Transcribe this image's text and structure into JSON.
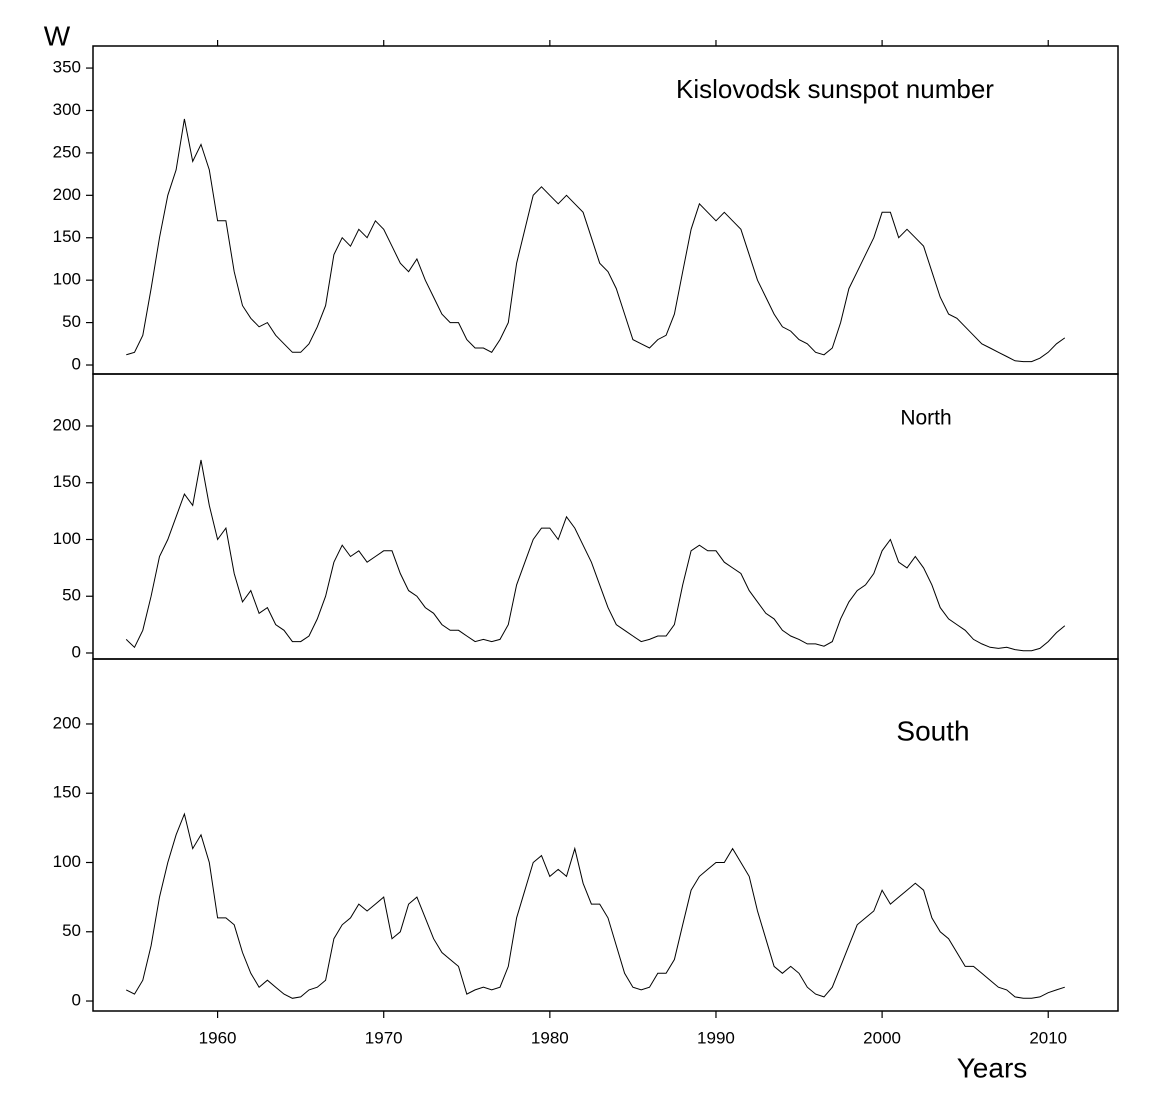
{
  "chart_data": [
    {
      "type": "line",
      "title": "Kislovodsk sunspot number",
      "ylabel": "W",
      "color": "#000000",
      "xlim": [
        1952.5,
        2014.2
      ],
      "ylim": [
        -10.6,
        376
      ],
      "yticks": [
        0,
        50,
        100,
        150,
        200,
        250,
        300,
        350
      ],
      "x": [
        1954.5,
        1955,
        1955.5,
        1956,
        1956.5,
        1957,
        1957.5,
        1958,
        1958.5,
        1959,
        1959.5,
        1960,
        1960.5,
        1961,
        1961.5,
        1962,
        1962.5,
        1963,
        1963.5,
        1964,
        1964.5,
        1965,
        1965.5,
        1966,
        1966.5,
        1967,
        1967.5,
        1968,
        1968.5,
        1969,
        1969.5,
        1970,
        1970.5,
        1971,
        1971.5,
        1972,
        1972.5,
        1973,
        1973.5,
        1974,
        1974.5,
        1975,
        1975.5,
        1976,
        1976.5,
        1977,
        1977.5,
        1978,
        1978.5,
        1979,
        1979.5,
        1980,
        1980.5,
        1981,
        1981.5,
        1982,
        1982.5,
        1983,
        1983.5,
        1984,
        1984.5,
        1985,
        1985.5,
        1986,
        1986.5,
        1987,
        1987.5,
        1988,
        1988.5,
        1989,
        1989.5,
        1990,
        1990.5,
        1991,
        1991.5,
        1992,
        1992.5,
        1993,
        1993.5,
        1994,
        1994.5,
        1995,
        1995.5,
        1996,
        1996.5,
        1997,
        1997.5,
        1998,
        1998.5,
        1999,
        1999.5,
        2000,
        2000.5,
        2001,
        2001.5,
        2002,
        2002.5,
        2003,
        2003.5,
        2004,
        2004.5,
        2005,
        2005.5,
        2006,
        2006.5,
        2007,
        2007.5,
        2008,
        2008.5,
        2009,
        2009.5,
        2010,
        2010.5,
        2011
      ],
      "values": [
        12,
        15,
        35,
        90,
        150,
        200,
        230,
        290,
        240,
        260,
        230,
        170,
        170,
        110,
        70,
        55,
        45,
        50,
        35,
        25,
        15,
        15,
        25,
        45,
        70,
        130,
        150,
        140,
        160,
        150,
        170,
        160,
        140,
        120,
        110,
        125,
        100,
        80,
        60,
        50,
        50,
        30,
        20,
        20,
        15,
        30,
        50,
        120,
        160,
        200,
        210,
        200,
        190,
        200,
        190,
        180,
        150,
        120,
        110,
        90,
        60,
        30,
        25,
        20,
        30,
        35,
        60,
        110,
        160,
        190,
        180,
        170,
        180,
        170,
        160,
        130,
        100,
        80,
        60,
        45,
        40,
        30,
        25,
        15,
        12,
        20,
        50,
        90,
        110,
        130,
        150,
        180,
        180,
        150,
        160,
        150,
        140,
        110,
        80,
        60,
        55,
        45,
        35,
        25,
        20,
        15,
        10,
        5,
        4,
        4,
        8,
        15,
        25,
        32
      ]
    },
    {
      "type": "line",
      "title": "North",
      "color": "#000000",
      "xlim": [
        1952.5,
        2014.2
      ],
      "ylim": [
        -5.3,
        245.8
      ],
      "yticks": [
        0,
        50,
        100,
        150,
        200
      ],
      "x": [
        1954.5,
        1955,
        1955.5,
        1956,
        1956.5,
        1957,
        1957.5,
        1958,
        1958.5,
        1959,
        1959.5,
        1960,
        1960.5,
        1961,
        1961.5,
        1962,
        1962.5,
        1963,
        1963.5,
        1964,
        1964.5,
        1965,
        1965.5,
        1966,
        1966.5,
        1967,
        1967.5,
        1968,
        1968.5,
        1969,
        1969.5,
        1970,
        1970.5,
        1971,
        1971.5,
        1972,
        1972.5,
        1973,
        1973.5,
        1974,
        1974.5,
        1975,
        1975.5,
        1976,
        1976.5,
        1977,
        1977.5,
        1978,
        1978.5,
        1979,
        1979.5,
        1980,
        1980.5,
        1981,
        1981.5,
        1982,
        1982.5,
        1983,
        1983.5,
        1984,
        1984.5,
        1985,
        1985.5,
        1986,
        1986.5,
        1987,
        1987.5,
        1988,
        1988.5,
        1989,
        1989.5,
        1990,
        1990.5,
        1991,
        1991.5,
        1992,
        1992.5,
        1993,
        1993.5,
        1994,
        1994.5,
        1995,
        1995.5,
        1996,
        1996.5,
        1997,
        1997.5,
        1998,
        1998.5,
        1999,
        1999.5,
        2000,
        2000.5,
        2001,
        2001.5,
        2002,
        2002.5,
        2003,
        2003.5,
        2004,
        2004.5,
        2005,
        2005.5,
        2006,
        2006.5,
        2007,
        2007.5,
        2008,
        2008.5,
        2009,
        2009.5,
        2010,
        2010.5,
        2011
      ],
      "values": [
        12,
        5,
        20,
        50,
        85,
        100,
        120,
        140,
        130,
        170,
        130,
        100,
        110,
        70,
        45,
        55,
        35,
        40,
        25,
        20,
        10,
        10,
        15,
        30,
        50,
        80,
        95,
        85,
        90,
        80,
        85,
        90,
        90,
        70,
        55,
        50,
        40,
        35,
        25,
        20,
        20,
        15,
        10,
        12,
        10,
        12,
        25,
        60,
        80,
        100,
        110,
        110,
        100,
        120,
        110,
        95,
        80,
        60,
        40,
        25,
        20,
        15,
        10,
        12,
        15,
        15,
        25,
        60,
        90,
        95,
        90,
        90,
        80,
        75,
        70,
        55,
        45,
        35,
        30,
        20,
        15,
        12,
        8,
        8,
        6,
        10,
        30,
        45,
        55,
        60,
        70,
        90,
        100,
        80,
        75,
        85,
        75,
        60,
        40,
        30,
        25,
        20,
        12,
        8,
        5,
        4,
        5,
        3,
        2,
        2,
        4,
        10,
        18,
        24
      ]
    },
    {
      "type": "line",
      "title": "South",
      "xlabel": "Years",
      "color": "#000000",
      "xlim": [
        1952.5,
        2014.2
      ],
      "ylim": [
        -7.2,
        246.9
      ],
      "yticks": [
        0,
        50,
        100,
        150,
        200
      ],
      "xticks": [
        1960,
        1970,
        1980,
        1990,
        2000,
        2010
      ],
      "x": [
        1954.5,
        1955,
        1955.5,
        1956,
        1956.5,
        1957,
        1957.5,
        1958,
        1958.5,
        1959,
        1959.5,
        1960,
        1960.5,
        1961,
        1961.5,
        1962,
        1962.5,
        1963,
        1963.5,
        1964,
        1964.5,
        1965,
        1965.5,
        1966,
        1966.5,
        1967,
        1967.5,
        1968,
        1968.5,
        1969,
        1969.5,
        1970,
        1970.5,
        1971,
        1971.5,
        1972,
        1972.5,
        1973,
        1973.5,
        1974,
        1974.5,
        1975,
        1975.5,
        1976,
        1976.5,
        1977,
        1977.5,
        1978,
        1978.5,
        1979,
        1979.5,
        1980,
        1980.5,
        1981,
        1981.5,
        1982,
        1982.5,
        1983,
        1983.5,
        1984,
        1984.5,
        1985,
        1985.5,
        1986,
        1986.5,
        1987,
        1987.5,
        1988,
        1988.5,
        1989,
        1989.5,
        1990,
        1990.5,
        1991,
        1991.5,
        1992,
        1992.5,
        1993,
        1993.5,
        1994,
        1994.5,
        1995,
        1995.5,
        1996,
        1996.5,
        1997,
        1997.5,
        1998,
        1998.5,
        1999,
        1999.5,
        2000,
        2000.5,
        2001,
        2001.5,
        2002,
        2002.5,
        2003,
        2003.5,
        2004,
        2004.5,
        2005,
        2005.5,
        2006,
        2006.5,
        2007,
        2007.5,
        2008,
        2008.5,
        2009,
        2009.5,
        2010,
        2010.5,
        2011
      ],
      "values": [
        8,
        5,
        15,
        40,
        75,
        100,
        120,
        135,
        110,
        120,
        100,
        60,
        60,
        55,
        35,
        20,
        10,
        15,
        10,
        5,
        2,
        3,
        8,
        10,
        15,
        45,
        55,
        60,
        70,
        65,
        70,
        75,
        45,
        50,
        70,
        75,
        60,
        45,
        35,
        30,
        25,
        5,
        8,
        10,
        8,
        10,
        25,
        60,
        80,
        100,
        105,
        90,
        95,
        90,
        110,
        85,
        70,
        70,
        60,
        40,
        20,
        10,
        8,
        10,
        20,
        20,
        30,
        55,
        80,
        90,
        95,
        100,
        100,
        110,
        100,
        90,
        65,
        45,
        25,
        20,
        25,
        20,
        10,
        5,
        3,
        10,
        25,
        40,
        55,
        60,
        65,
        80,
        70,
        75,
        80,
        85,
        80,
        60,
        50,
        45,
        35,
        25,
        25,
        20,
        15,
        10,
        8,
        3,
        2,
        2,
        3,
        6,
        8,
        10
      ]
    }
  ]
}
